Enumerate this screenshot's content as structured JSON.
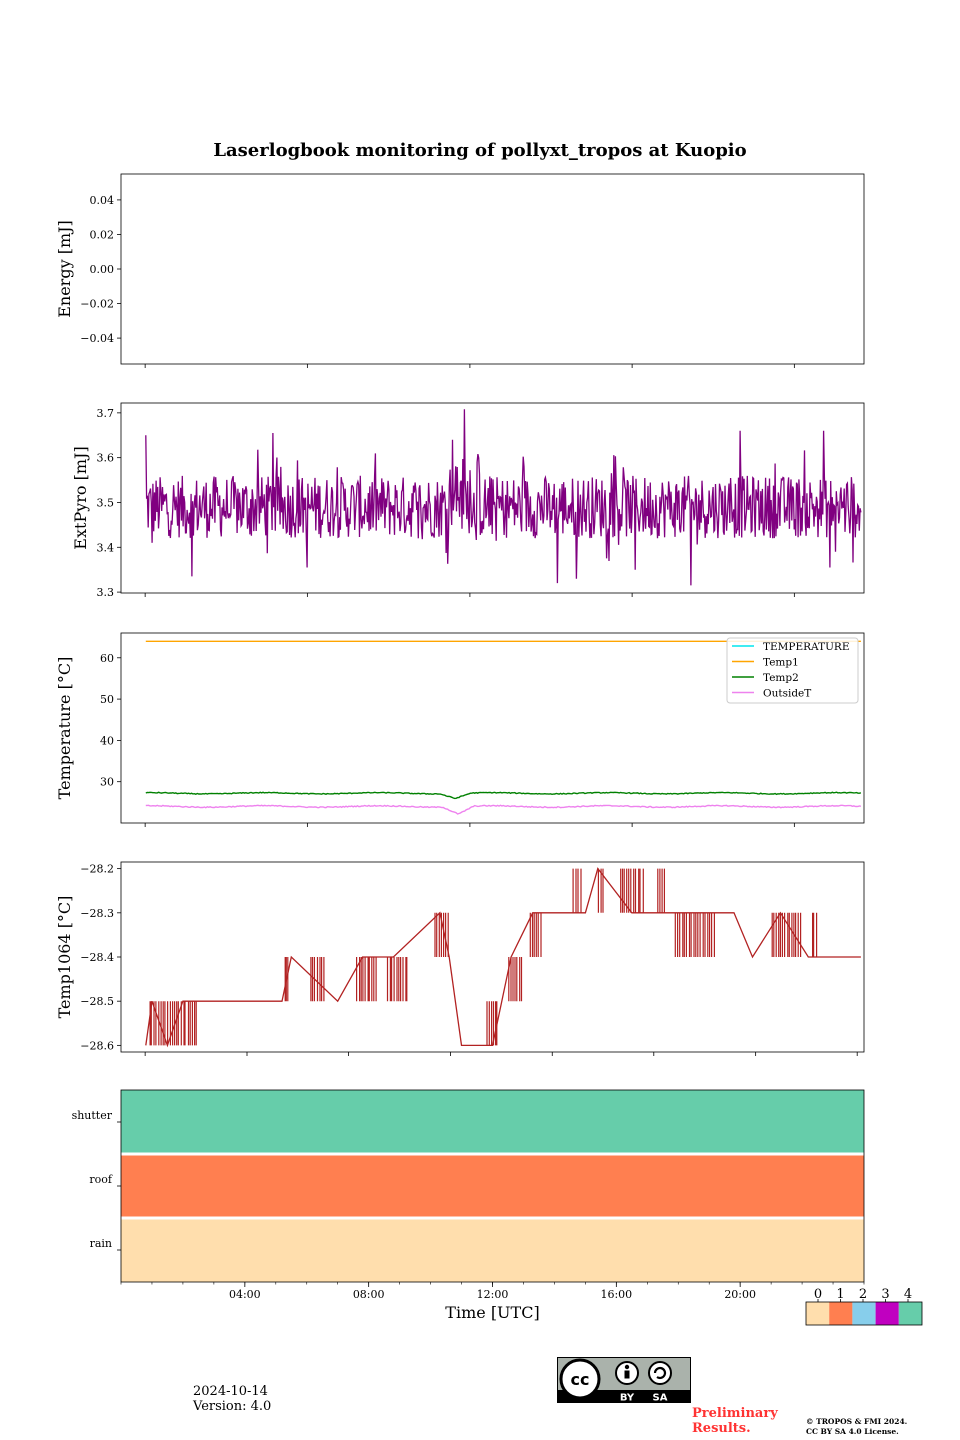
{
  "title": "Laserlogbook monitoring of pollyxt_tropos at Kuopio",
  "footer": {
    "date": "2024-10-14",
    "version": "Version: 4.0",
    "preliminary": "Preliminary Results.",
    "copyright_line1": "© TROPOS & FMI 2024.",
    "copyright_line2": "CC BY SA 4.0 License.",
    "license_badge": {
      "cc": "cc",
      "by": "BY",
      "sa": "SA"
    }
  },
  "chart_data": [
    {
      "id": "energy",
      "type": "line",
      "ylabel": "Energy [mJ]",
      "ylim": [
        -0.055,
        0.055
      ],
      "yticks": [
        0.04,
        0.02,
        0.0,
        -0.02,
        -0.04
      ],
      "ytick_labels": [
        "0.04",
        "0.02",
        "0.00",
        "−0.02",
        "−0.04"
      ],
      "series": []
    },
    {
      "id": "extpyro",
      "type": "line",
      "ylabel": "ExtPyro [mJ]",
      "ylim": [
        3.298,
        3.722
      ],
      "yticks": [
        3.3,
        3.4,
        3.5,
        3.6,
        3.7
      ],
      "ytick_labels": [
        "3.3",
        "3.4",
        "3.5",
        "3.6",
        "3.7"
      ],
      "series": [
        {
          "name": "ExtPyro",
          "color": "#800080",
          "x_range_hours": [
            0.8,
            23.9
          ],
          "mean": 3.49,
          "typical_spread": 0.05,
          "min": 3.315,
          "max": 3.708,
          "peaks": [
            [
              0.8,
              3.65
            ],
            [
              1.0,
              3.41
            ],
            [
              2.3,
              3.335
            ],
            [
              4.9,
              3.655
            ],
            [
              6.0,
              3.355
            ],
            [
              9.6,
              3.42
            ],
            [
              10.7,
              3.64
            ],
            [
              11.1,
              3.708
            ],
            [
              11.5,
              3.59
            ],
            [
              14.1,
              3.32
            ],
            [
              14.7,
              3.33
            ],
            [
              16.6,
              3.35
            ],
            [
              18.4,
              3.315
            ],
            [
              20.0,
              3.66
            ],
            [
              22.7,
              3.66
            ],
            [
              22.9,
              3.355
            ]
          ]
        }
      ]
    },
    {
      "id": "temperature",
      "type": "line",
      "ylabel": "Temperature [°C]",
      "ylim": [
        20,
        66
      ],
      "yticks": [
        30,
        40,
        50,
        60
      ],
      "ytick_labels": [
        "30",
        "40",
        "50",
        "60"
      ],
      "legend_position": "top-right",
      "series": [
        {
          "name": "TEMPERATURE",
          "color": "#00e5ee",
          "values": []
        },
        {
          "name": "Temp1",
          "color": "#ffa500",
          "x_range_hours": [
            0.8,
            23.9
          ],
          "level": 64.0,
          "noise": 0.0
        },
        {
          "name": "Temp2",
          "color": "#008000",
          "x_range_hours": [
            0.8,
            23.9
          ],
          "level": 27.2,
          "noise": 0.25,
          "dip": {
            "at_hours": 10.8,
            "value": 26.0
          }
        },
        {
          "name": "OutsideT",
          "color": "#ee82ee",
          "x_range_hours": [
            0.8,
            23.9
          ],
          "level": 24.0,
          "noise": 0.3,
          "dip": {
            "at_hours": 10.9,
            "value": 22.2
          }
        }
      ]
    },
    {
      "id": "temp1064",
      "type": "line",
      "ylabel": "Temp1064 [°C]",
      "ylim": [
        -28.615,
        -28.185
      ],
      "yticks": [
        -28.2,
        -28.3,
        -28.4,
        -28.5,
        -28.6
      ],
      "ytick_labels": [
        "−28.2",
        "−28.3",
        "−28.4",
        "−28.5",
        "−28.6"
      ],
      "series": [
        {
          "name": "Temp1064",
          "color": "#b22222",
          "steps": [
            [
              0.8,
              -28.6
            ],
            [
              1.0,
              -28.5
            ],
            [
              1.5,
              -28.6
            ],
            [
              2.0,
              -28.5
            ],
            [
              5.2,
              -28.5
            ],
            [
              5.5,
              -28.4
            ],
            [
              7.0,
              -28.5
            ],
            [
              7.8,
              -28.4
            ],
            [
              8.8,
              -28.4
            ],
            [
              10.3,
              -28.3
            ],
            [
              10.6,
              -28.4
            ],
            [
              11.0,
              -28.6
            ],
            [
              12.0,
              -28.6
            ],
            [
              12.3,
              -28.5
            ],
            [
              12.6,
              -28.4
            ],
            [
              13.3,
              -28.3
            ],
            [
              15.0,
              -28.3
            ],
            [
              15.4,
              -28.2
            ],
            [
              16.5,
              -28.3
            ],
            [
              19.8,
              -28.3
            ],
            [
              20.4,
              -28.4
            ],
            [
              21.3,
              -28.3
            ],
            [
              22.2,
              -28.4
            ],
            [
              23.9,
              -28.4
            ]
          ],
          "switching_intervals_hours": [
            [
              0.9,
              2.5,
              -28.6,
              -28.5
            ],
            [
              5.3,
              5.4,
              -28.5,
              -28.4
            ],
            [
              6.1,
              6.6,
              -28.5,
              -28.4
            ],
            [
              7.6,
              8.3,
              -28.5,
              -28.4
            ],
            [
              8.6,
              9.3,
              -28.5,
              -28.4
            ],
            [
              10.1,
              10.6,
              -28.4,
              -28.3
            ],
            [
              11.8,
              12.2,
              -28.6,
              -28.5
            ],
            [
              12.5,
              13.0,
              -28.5,
              -28.4
            ],
            [
              13.2,
              13.6,
              -28.4,
              -28.3
            ],
            [
              14.6,
              14.9,
              -28.3,
              -28.2
            ],
            [
              15.4,
              15.6,
              -28.3,
              -28.2
            ],
            [
              16.1,
              16.9,
              -28.3,
              -28.2
            ],
            [
              17.3,
              17.6,
              -28.3,
              -28.2
            ],
            [
              17.9,
              19.2,
              -28.4,
              -28.3
            ],
            [
              21.0,
              22.0,
              -28.4,
              -28.3
            ],
            [
              22.3,
              22.5,
              -28.4,
              -28.3
            ]
          ]
        }
      ]
    },
    {
      "id": "status",
      "type": "heatmap",
      "xlabel": "Time [UTC]",
      "xlim_hours": [
        0,
        24
      ],
      "xticks_hours": [
        4,
        8,
        12,
        16,
        20
      ],
      "xtick_labels": [
        "04:00",
        "08:00",
        "12:00",
        "16:00",
        "20:00"
      ],
      "rows": [
        "shutter",
        "roof",
        "rain"
      ],
      "row_values": [
        4,
        1,
        0
      ],
      "colorbar": {
        "ticks": [
          "0",
          "1",
          "2",
          "3",
          "4"
        ],
        "colors": [
          "#ffdead",
          "#ff7f50",
          "#87ceeb",
          "#c000c0",
          "#66cdaa"
        ]
      }
    }
  ]
}
